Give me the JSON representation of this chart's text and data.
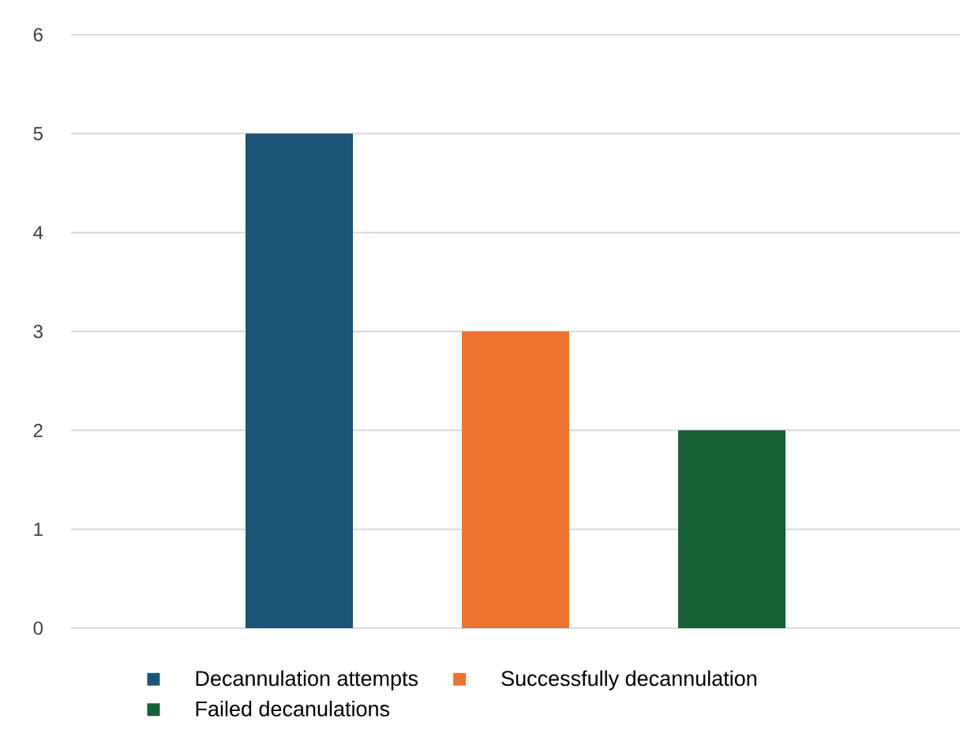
{
  "chart_data": {
    "type": "bar",
    "categories": [
      null
    ],
    "ylim": [
      0,
      6
    ],
    "yticks": [
      0,
      1,
      2,
      3,
      4,
      5,
      6
    ],
    "grid": "y",
    "legend": "bottom",
    "series": [
      {
        "name": "Decannulation attempts",
        "color": "#1c5478",
        "values": [
          5
        ]
      },
      {
        "name": "Successfully decannulation",
        "color": "#ec7430",
        "values": [
          3
        ]
      },
      {
        "name": "Failed decanulations",
        "color": "#185f35",
        "values": [
          2
        ]
      }
    ]
  }
}
